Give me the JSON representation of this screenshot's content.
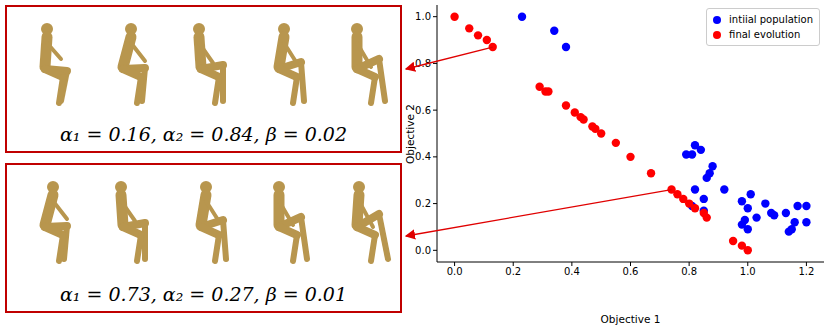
{
  "chart_data": {
    "type": "scatter",
    "x_label": "Objective 1",
    "y_label": "Objective 2",
    "xlim": [
      -0.06,
      1.26
    ],
    "ylim": [
      -0.05,
      1.05
    ],
    "xticks": [
      {
        "value": 0,
        "label": "0.0"
      },
      0.2,
      0.4,
      0.6,
      0.8,
      {
        "value": 1,
        "label": "1.0"
      },
      1.2
    ],
    "yticks": [
      {
        "value": 0,
        "label": "0.0"
      },
      0.2,
      0.4,
      0.6,
      0.8,
      {
        "value": 1,
        "label": "1.0"
      }
    ],
    "grid": false,
    "legend": "upper right",
    "series": [
      {
        "name": "intiial population",
        "color": "#0000ff",
        "marker": "circle",
        "x": [
          0.23,
          0.34,
          0.38,
          0.82,
          0.84,
          0.79,
          0.81,
          0.88,
          0.87,
          0.86,
          0.82,
          0.92,
          0.85,
          0.81,
          0.85,
          0.98,
          1.01,
          1.0,
          1.06,
          1.08,
          1.09,
          1.03,
          0.99,
          0.98,
          1.0,
          1.13,
          1.17,
          1.2,
          1.16,
          1.2,
          1.15,
          1.14
        ],
        "values": [
          1.0,
          0.94,
          0.87,
          0.45,
          0.43,
          0.41,
          0.41,
          0.36,
          0.33,
          0.31,
          0.26,
          0.26,
          0.22,
          0.19,
          0.17,
          0.21,
          0.24,
          0.18,
          0.2,
          0.16,
          0.15,
          0.14,
          0.13,
          0.11,
          0.09,
          0.16,
          0.19,
          0.19,
          0.12,
          0.12,
          0.09,
          0.08
        ]
      },
      {
        "name": "final evolution",
        "color": "#ff0000",
        "marker": "circle",
        "x": [
          0.0,
          0.05,
          0.08,
          0.11,
          0.13,
          0.29,
          0.31,
          0.32,
          0.38,
          0.41,
          0.43,
          0.44,
          0.47,
          0.48,
          0.5,
          0.55,
          0.6,
          0.67,
          0.74,
          0.76,
          0.78,
          0.8,
          0.82,
          0.85,
          0.86,
          0.95,
          0.98,
          1.0
        ],
        "values": [
          1.0,
          0.95,
          0.92,
          0.9,
          0.87,
          0.7,
          0.68,
          0.68,
          0.62,
          0.59,
          0.57,
          0.56,
          0.53,
          0.52,
          0.5,
          0.46,
          0.4,
          0.33,
          0.26,
          0.24,
          0.22,
          0.2,
          0.18,
          0.16,
          0.14,
          0.04,
          0.02,
          0.0
        ]
      }
    ]
  },
  "panels": [
    {
      "caption": "α₁ = 0.16, α₂ = 0.84, β = 0.02"
    },
    {
      "caption": "α₁ = 0.73, α₂ = 0.27, β = 0.01"
    }
  ]
}
